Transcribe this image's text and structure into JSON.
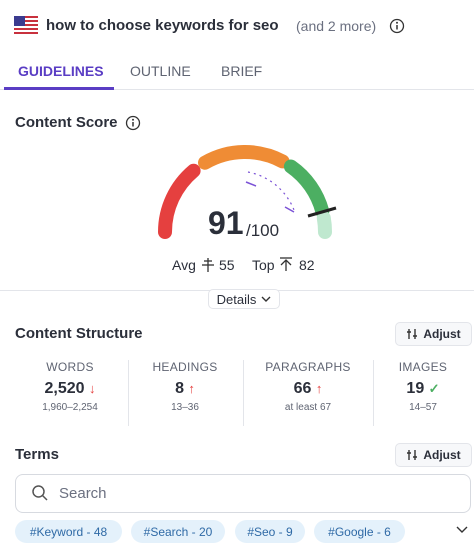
{
  "header": {
    "title": "how to choose keywords for seo",
    "more": "(and 2 more)"
  },
  "tabs": [
    "GUIDELINES",
    "OUTLINE",
    "BRIEF"
  ],
  "content_score": {
    "title": "Content Score",
    "score": "91",
    "max": "/100",
    "avg_label": "Avg",
    "avg": "55",
    "top_label": "Top",
    "top": "82",
    "details": "Details"
  },
  "content_structure": {
    "title": "Content Structure",
    "adjust": "Adjust",
    "metrics": [
      {
        "label": "WORDS",
        "value": "2,520",
        "range": "1,960–2,254"
      },
      {
        "label": "HEADINGS",
        "value": "8",
        "range": "13–36"
      },
      {
        "label": "PARAGRAPHS",
        "value": "66",
        "range": "at least 67"
      },
      {
        "label": "IMAGES",
        "value": "19",
        "range": "14–57"
      }
    ]
  },
  "terms": {
    "title": "Terms",
    "adjust": "Adjust",
    "search_placeholder": "Search",
    "tags": [
      "#Keyword - 48",
      "#Search - 20",
      "#Seo - 9",
      "#Google - 6"
    ]
  }
}
